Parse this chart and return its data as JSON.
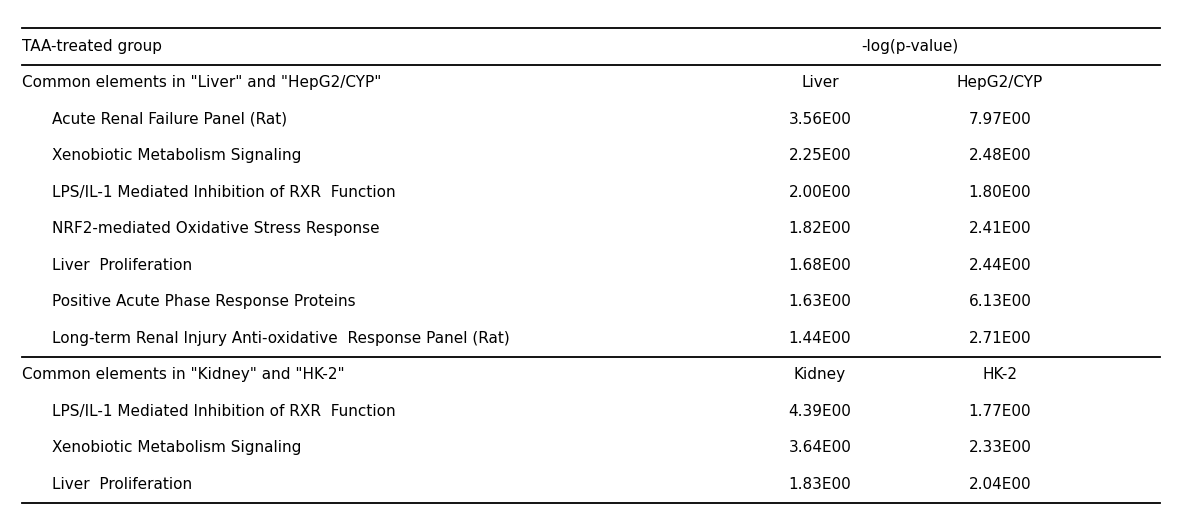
{
  "title_row": [
    "TAA-treated group",
    "-log(p-value)"
  ],
  "section1_header": [
    "Common elements in \"Liver\" and \"HepG2/CYP\"",
    "Liver",
    "HepG2/CYP"
  ],
  "section1_rows": [
    [
      "Acute Renal Failure Panel (Rat)",
      "3.56E00",
      "7.97E00"
    ],
    [
      "Xenobiotic Metabolism Signaling",
      "2.25E00",
      "2.48E00"
    ],
    [
      "LPS/IL-1 Mediated Inhibition of RXR  Function",
      "2.00E00",
      "1.80E00"
    ],
    [
      "NRF2-mediated Oxidative Stress Response",
      "1.82E00",
      "2.41E00"
    ],
    [
      "Liver  Proliferation",
      "1.68E00",
      "2.44E00"
    ],
    [
      "Positive Acute Phase Response Proteins",
      "1.63E00",
      "6.13E00"
    ],
    [
      "Long-term Renal Injury Anti-oxidative  Response Panel (Rat)",
      "1.44E00",
      "2.71E00"
    ]
  ],
  "section2_header": [
    "Common elements in \"Kidney\" and \"HK-2\"",
    "Kidney",
    "HK-2"
  ],
  "section2_rows": [
    [
      "LPS/IL-1 Mediated Inhibition of RXR  Function",
      "4.39E00",
      "1.77E00"
    ],
    [
      "Xenobiotic Metabolism Signaling",
      "3.64E00",
      "2.33E00"
    ],
    [
      "Liver  Proliferation",
      "1.83E00",
      "2.04E00"
    ]
  ],
  "font_size": 11.0,
  "background_color": "#ffffff",
  "text_color": "#000000",
  "line_color": "#000000"
}
